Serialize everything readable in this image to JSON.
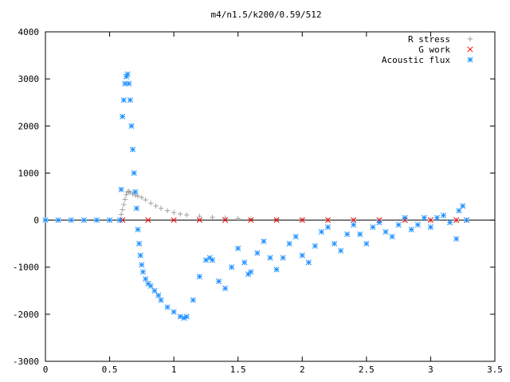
{
  "chart_data": {
    "type": "scatter",
    "title": "m4/n1.5/k200/0.59/512",
    "xlabel": "",
    "ylabel": "",
    "xlim": [
      0,
      3.5
    ],
    "ylim": [
      -3000,
      4000
    ],
    "x_ticks": [
      "0",
      "0.5",
      "1",
      "1.5",
      "2",
      "2.5",
      "3",
      "3.5"
    ],
    "y_ticks": [
      "-3000",
      "-2000",
      "-1000",
      "0",
      "1000",
      "2000",
      "3000",
      "4000"
    ],
    "grid": false,
    "legend_position": "top-right",
    "series": [
      {
        "name": "R stress",
        "marker": "plus",
        "color": "#a0a0a0",
        "x": [
          0.59,
          0.6,
          0.61,
          0.62,
          0.63,
          0.64,
          0.65,
          0.66,
          0.68,
          0.7,
          0.72,
          0.75,
          0.78,
          0.82,
          0.86,
          0.9,
          0.95,
          1.0,
          1.05,
          1.1,
          1.2,
          1.3,
          1.4,
          1.5,
          1.6,
          1.8,
          2.0,
          2.2,
          2.4,
          2.6,
          2.8,
          3.0,
          3.2,
          3.28
        ],
        "y": [
          120,
          220,
          330,
          440,
          540,
          600,
          610,
          590,
          560,
          530,
          510,
          480,
          430,
          360,
          300,
          250,
          200,
          160,
          130,
          110,
          80,
          60,
          45,
          35,
          25,
          15,
          10,
          6,
          4,
          2,
          1,
          0,
          0,
          0
        ]
      },
      {
        "name": "G work",
        "marker": "cross",
        "color": "#ff0000",
        "x": [
          0.6,
          0.8,
          1.0,
          1.2,
          1.4,
          1.6,
          1.8,
          2.0,
          2.2,
          2.4,
          2.6,
          2.8,
          3.0,
          3.2,
          3.28
        ],
        "y": [
          0,
          0,
          0,
          0,
          0,
          0,
          0,
          0,
          0,
          0,
          0,
          0,
          0,
          0,
          0
        ]
      },
      {
        "name": "Acoustic flux",
        "marker": "star",
        "color": "#1e90ff",
        "x": [
          0,
          0.1,
          0.2,
          0.3,
          0.4,
          0.5,
          0.58,
          0.59,
          0.6,
          0.61,
          0.62,
          0.63,
          0.64,
          0.65,
          0.66,
          0.67,
          0.68,
          0.69,
          0.7,
          0.71,
          0.72,
          0.73,
          0.74,
          0.75,
          0.76,
          0.78,
          0.8,
          0.82,
          0.85,
          0.88,
          0.9,
          0.95,
          1.0,
          1.05,
          1.08,
          1.1,
          1.15,
          1.2,
          1.25,
          1.28,
          1.3,
          1.35,
          1.4,
          1.45,
          1.5,
          1.55,
          1.58,
          1.6,
          1.65,
          1.7,
          1.75,
          1.8,
          1.85,
          1.9,
          1.95,
          2.0,
          2.05,
          2.1,
          2.15,
          2.2,
          2.25,
          2.3,
          2.35,
          2.4,
          2.45,
          2.5,
          2.55,
          2.6,
          2.65,
          2.7,
          2.75,
          2.8,
          2.85,
          2.9,
          2.95,
          3.0,
          3.05,
          3.1,
          3.15,
          3.2,
          3.22,
          3.25,
          3.28
        ],
        "y": [
          0,
          0,
          0,
          0,
          0,
          0,
          0,
          650,
          2200,
          2550,
          2900,
          3050,
          3100,
          2900,
          2550,
          2000,
          1500,
          1000,
          600,
          250,
          -200,
          -500,
          -750,
          -950,
          -1100,
          -1250,
          -1350,
          -1400,
          -1500,
          -1600,
          -1700,
          -1850,
          -1950,
          -2050,
          -2080,
          -2050,
          -1700,
          -1200,
          -850,
          -800,
          -850,
          -1300,
          -1450,
          -1000,
          -600,
          -900,
          -1150,
          -1100,
          -700,
          -450,
          -800,
          -1050,
          -800,
          -500,
          -350,
          -750,
          -900,
          -550,
          -250,
          -150,
          -500,
          -650,
          -300,
          -100,
          -300,
          -500,
          -150,
          -50,
          -250,
          -350,
          -100,
          50,
          -200,
          -100,
          50,
          -150,
          50,
          100,
          -50,
          -400,
          200,
          300,
          0
        ]
      }
    ]
  }
}
